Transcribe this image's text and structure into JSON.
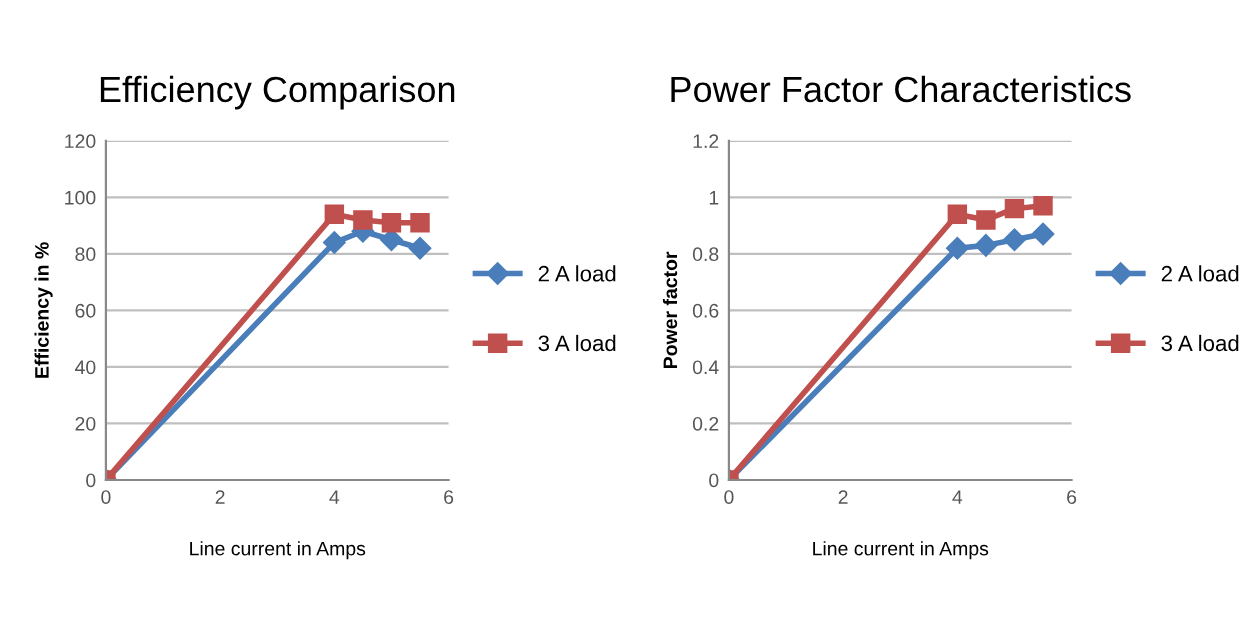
{
  "chart_data": [
    {
      "type": "line",
      "title": "Efficiency Comparison",
      "xlabel": "Line current in Amps",
      "ylabel": "Efficiency in %",
      "x": [
        0,
        4,
        4.5,
        5,
        5.5
      ],
      "series": [
        {
          "name": "2 A load",
          "color": "#4a7ebb",
          "marker": "diamond",
          "values": [
            0,
            84,
            88,
            85,
            82
          ]
        },
        {
          "name": "3 A load",
          "color": "#c0504d",
          "marker": "square",
          "values": [
            0,
            94,
            92,
            91,
            91
          ]
        }
      ],
      "xlim": [
        0,
        6
      ],
      "xticks": [
        0,
        2,
        4,
        6
      ],
      "ylim": [
        0,
        120
      ],
      "yticks": [
        0,
        20,
        40,
        60,
        80,
        100,
        120
      ],
      "grid": "y",
      "legend": "right"
    },
    {
      "type": "line",
      "title": "Power Factor Characteristics",
      "xlabel": "Line current in Amps",
      "ylabel": "Power factor",
      "x": [
        0,
        4,
        4.5,
        5,
        5.5
      ],
      "series": [
        {
          "name": "2 A load",
          "color": "#4a7ebb",
          "marker": "diamond",
          "values": [
            0,
            0.82,
            0.83,
            0.85,
            0.87
          ]
        },
        {
          "name": "3 A load",
          "color": "#c0504d",
          "marker": "square",
          "values": [
            0,
            0.94,
            0.92,
            0.96,
            0.97
          ]
        }
      ],
      "xlim": [
        0,
        6
      ],
      "xticks": [
        0,
        2,
        4,
        6
      ],
      "ylim": [
        0,
        1.2
      ],
      "yticks": [
        0,
        0.2,
        0.4,
        0.6,
        0.8,
        1,
        1.2
      ],
      "grid": "y",
      "legend": "right"
    }
  ]
}
